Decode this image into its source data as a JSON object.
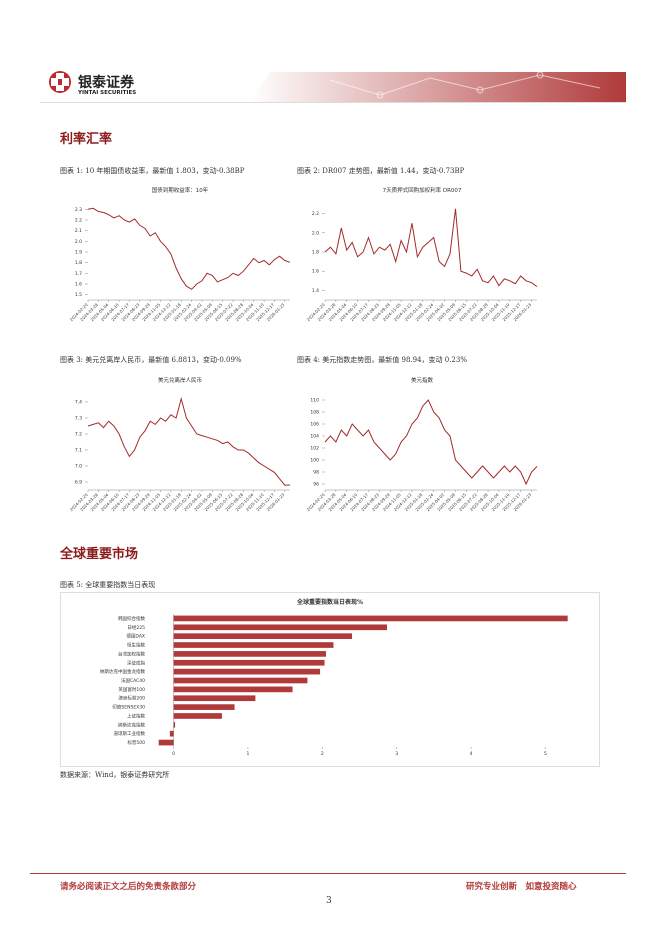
{
  "header": {
    "company": "银泰证券",
    "company_en": "YINTAI SECURITIES"
  },
  "sections": [
    "利率汇率",
    "全球重要市场"
  ],
  "captions": [
    "图表 1: 10 年期国债收益率，最新值 1.803，变动-0.38BP",
    "图表 2: DR007 走势图，最新值 1.44，变动-0.73BP",
    "图表 3: 美元兑离岸人民币，最新值 6.8813，变动-0.09%",
    "图表 4: 美元指数走势图，最新值 98.94，变动 0.23%",
    "图表 5: 全球重要指数当日表现"
  ],
  "source": "数据来源：Wind，银泰证券研究所",
  "footer": {
    "disclaimer": "请务必阅读正文之后的免责条款部分",
    "slogan": "研究专业创新　如意投资随心",
    "page": 3
  },
  "chart_data": [
    {
      "type": "line",
      "title": "国债到期收益率：10年",
      "color": "#a52a2a",
      "categories": [
        "2024-02-20",
        null,
        "2024-03-28",
        null,
        "2024-05-04",
        null,
        "2024-06-10",
        null,
        "2024-07-17",
        null,
        "2024-08-23",
        null,
        "2024-09-29",
        null,
        "2024-11-05",
        null,
        "2024-12-12",
        null,
        "2025-01-18",
        null,
        "2025-02-24",
        null,
        "2025-04-02",
        null,
        "2025-05-09",
        null,
        "2025-06-15",
        null,
        "2025-07-22",
        null,
        "2025-08-28",
        null,
        "2025-10-04",
        null,
        "2025-11-10",
        null,
        "2025-12-17",
        null,
        "2026-01-23",
        null
      ],
      "values": [
        2.3,
        2.31,
        2.28,
        2.27,
        2.25,
        2.22,
        2.24,
        2.2,
        2.18,
        2.21,
        2.15,
        2.12,
        2.05,
        2.08,
        2.0,
        1.95,
        1.88,
        1.75,
        1.65,
        1.58,
        1.55,
        1.6,
        1.63,
        1.7,
        1.68,
        1.62,
        1.64,
        1.66,
        1.7,
        1.68,
        1.72,
        1.78,
        1.84,
        1.8,
        1.82,
        1.78,
        1.83,
        1.86,
        1.82,
        1.803
      ],
      "ylim": [
        1.45,
        2.35
      ],
      "yticks": [
        1.5,
        1.6,
        1.7,
        1.8,
        1.9,
        {
          "value": 2,
          "label": "2.0"
        },
        2.1,
        2.2,
        2.3
      ]
    },
    {
      "type": "line",
      "title": "7天质押式回购加权利率 DR007",
      "color": "#a52a2a",
      "categories": [
        "2024-02-20",
        null,
        "2024-03-28",
        null,
        "2024-05-04",
        null,
        "2024-06-10",
        null,
        "2024-07-17",
        null,
        "2024-08-23",
        null,
        "2024-09-29",
        null,
        "2024-11-05",
        null,
        "2024-12-12",
        null,
        "2025-01-18",
        null,
        "2025-02-24",
        null,
        "2025-04-02",
        null,
        "2025-05-09",
        null,
        "2025-06-15",
        null,
        "2025-07-22",
        null,
        "2025-08-28",
        null,
        "2025-10-04",
        null,
        "2025-11-10",
        null,
        "2025-12-17",
        null,
        "2026-01-23",
        null
      ],
      "values": [
        1.8,
        1.85,
        1.78,
        2.05,
        1.82,
        1.9,
        1.75,
        1.8,
        1.95,
        1.78,
        1.85,
        1.82,
        1.88,
        1.7,
        1.92,
        1.8,
        2.1,
        1.75,
        1.85,
        1.9,
        1.95,
        1.7,
        1.65,
        1.78,
        2.25,
        1.6,
        1.58,
        1.55,
        1.62,
        1.5,
        1.48,
        1.55,
        1.45,
        1.52,
        1.5,
        1.47,
        1.55,
        1.5,
        1.48,
        1.44
      ],
      "ylim": [
        1.3,
        2.3
      ],
      "yticks": [
        1.4,
        1.6,
        1.8,
        {
          "value": 2,
          "label": "2.0"
        },
        2.2
      ]
    },
    {
      "type": "line",
      "title": "美元兑离岸人民币",
      "color": "#a52a2a",
      "categories": [
        "2024-02-20",
        null,
        "2024-03-28",
        null,
        "2024-05-04",
        null,
        "2024-06-10",
        null,
        "2024-07-17",
        null,
        "2024-08-23",
        null,
        "2024-09-29",
        null,
        "2024-11-05",
        null,
        "2024-12-12",
        null,
        "2025-01-18",
        null,
        "2025-02-24",
        null,
        "2025-04-02",
        null,
        "2025-05-09",
        null,
        "2025-06-15",
        null,
        "2025-07-22",
        null,
        "2025-08-28",
        null,
        "2025-10-04",
        null,
        "2025-11-10",
        null,
        "2025-12-17",
        null,
        "2026-01-23",
        null
      ],
      "values": [
        7.25,
        7.26,
        7.27,
        7.24,
        7.28,
        7.25,
        7.2,
        7.12,
        7.06,
        7.1,
        7.18,
        7.22,
        7.28,
        7.26,
        7.3,
        7.28,
        7.32,
        7.3,
        7.42,
        7.3,
        7.25,
        7.2,
        7.19,
        7.18,
        7.17,
        7.16,
        7.14,
        7.15,
        7.12,
        7.1,
        7.1,
        7.08,
        7.05,
        7.02,
        7.0,
        6.98,
        6.96,
        6.92,
        6.88,
        6.8813
      ],
      "ylim": [
        6.85,
        7.45
      ],
      "yticks": [
        6.9,
        {
          "value": 7,
          "label": "7.0"
        },
        7.1,
        7.2,
        7.3,
        7.4
      ]
    },
    {
      "type": "line",
      "title": "美元指数",
      "color": "#a52a2a",
      "categories": [
        "2024-02-20",
        null,
        "2024-03-28",
        null,
        "2024-05-04",
        null,
        "2024-06-10",
        null,
        "2024-07-17",
        null,
        "2024-08-23",
        null,
        "2024-09-29",
        null,
        "2024-11-05",
        null,
        "2024-12-12",
        null,
        "2025-01-18",
        null,
        "2025-02-24",
        null,
        "2025-04-02",
        null,
        "2025-05-09",
        null,
        "2025-06-15",
        null,
        "2025-07-22",
        null,
        "2025-08-28",
        null,
        "2025-10-04",
        null,
        "2025-11-10",
        null,
        "2025-12-17",
        null,
        "2026-01-23",
        null
      ],
      "values": [
        103,
        104,
        103,
        105,
        104,
        106,
        105,
        104,
        105,
        103,
        102,
        101,
        100,
        101,
        103,
        104,
        106,
        107,
        109,
        110,
        108,
        107,
        105,
        104,
        100,
        99,
        98,
        97,
        98,
        99,
        98,
        97,
        98,
        99,
        98,
        99,
        98,
        96,
        98,
        98.94
      ],
      "ylim": [
        95,
        111
      ],
      "yticks": [
        96,
        98,
        100,
        102,
        104,
        106,
        108,
        110
      ]
    },
    {
      "type": "barh",
      "title": "全球重要指数当日表现%",
      "color": "#b03a3a",
      "categories": [
        "韩国综合指数",
        "日经225",
        "德国DAX",
        "恒生指数",
        "台湾加权指数",
        "深证成指",
        "纳斯达克中国金龙指数",
        "法国CAC40",
        "英国富时100",
        "澳洲标普200",
        "印度SENSEX30",
        "上证指数",
        "纳斯达克指数",
        "道琼斯工业指数",
        "标普500"
      ],
      "values": [
        5.3,
        2.87,
        2.4,
        2.15,
        2.05,
        2.03,
        1.97,
        1.8,
        1.6,
        1.1,
        0.82,
        0.65,
        0.02,
        -0.05,
        -0.2
      ],
      "xlim": [
        -0.25,
        5.6
      ],
      "xticks": [
        0,
        1,
        2,
        3,
        4,
        5
      ]
    }
  ]
}
